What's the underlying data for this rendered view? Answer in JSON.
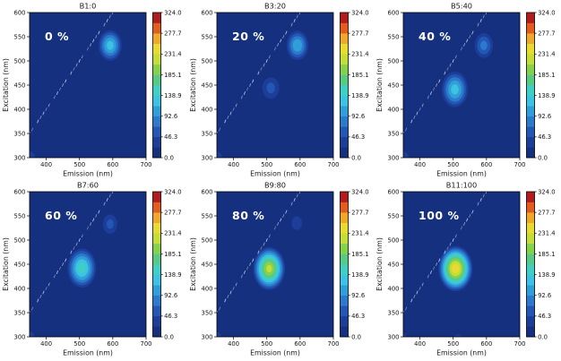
{
  "page": {
    "background": "#ffffff"
  },
  "style": {
    "plot_background": "#15307f",
    "palette": [
      "#15307f",
      "#1c3e99",
      "#2257b5",
      "#2b7acb",
      "#2f9ed9",
      "#3cc2e2",
      "#40cfc4",
      "#57ca85",
      "#86d14c",
      "#c4dd38",
      "#e9da32",
      "#f0a82b",
      "#e35c1e",
      "#b21b1e"
    ],
    "scatter_line_color": "#ced8f0",
    "overlay_text_color": "#ffffff",
    "axis_text_color": "#161616",
    "spine_color": "#000000"
  },
  "chart_data": [
    {
      "type": "heatmap",
      "title": "B1:0",
      "overlay_label": "0 %",
      "xlabel": "Emission (nm)",
      "ylabel": "Excitation (nm)",
      "xlim": [
        350,
        700
      ],
      "ylim": [
        300,
        600
      ],
      "xticks": [
        400,
        500,
        600,
        700
      ],
      "yticks": [
        300,
        350,
        400,
        450,
        500,
        550,
        600
      ],
      "colorbar_ticks": [
        "0.0",
        "46.3",
        "92.6",
        "138.9",
        "185.1",
        "231.4",
        "277.7",
        "324.0"
      ],
      "colorbar_range": [
        0,
        324
      ],
      "contour_levels": 14,
      "rayleigh_line": {
        "from": [
          350,
          350
        ],
        "to": [
          600,
          600
        ]
      },
      "peaks": [
        {
          "emission": 592,
          "excitation": 532,
          "intensity": 125,
          "rx": 40,
          "ry": 36
        },
        {
          "emission": 348,
          "excitation": 300,
          "intensity": 40,
          "rx": 28,
          "ry": 20
        }
      ]
    },
    {
      "type": "heatmap",
      "title": "B3:20",
      "overlay_label": "20 %",
      "xlabel": "Emission (nm)",
      "ylabel": "Excitation (nm)",
      "xlim": [
        350,
        700
      ],
      "ylim": [
        300,
        600
      ],
      "xticks": [
        400,
        500,
        600,
        700
      ],
      "yticks": [
        300,
        350,
        400,
        450,
        500,
        550,
        600
      ],
      "colorbar_ticks": [
        "0.0",
        "46.3",
        "92.6",
        "138.9",
        "185.1",
        "231.4",
        "277.7",
        "324.0"
      ],
      "colorbar_range": [
        0,
        324
      ],
      "contour_levels": 14,
      "rayleigh_line": {
        "from": [
          350,
          350
        ],
        "to": [
          600,
          600
        ]
      },
      "peaks": [
        {
          "emission": 592,
          "excitation": 532,
          "intensity": 112,
          "rx": 38,
          "ry": 35
        },
        {
          "emission": 512,
          "excitation": 444,
          "intensity": 50,
          "rx": 36,
          "ry": 31
        },
        {
          "emission": 348,
          "excitation": 300,
          "intensity": 40,
          "rx": 28,
          "ry": 20
        }
      ]
    },
    {
      "type": "heatmap",
      "title": "B5:40",
      "overlay_label": "40 %",
      "xlabel": "Emission (nm)",
      "ylabel": "Excitation (nm)",
      "xlim": [
        350,
        700
      ],
      "ylim": [
        300,
        600
      ],
      "xticks": [
        400,
        500,
        600,
        700
      ],
      "yticks": [
        300,
        350,
        400,
        450,
        500,
        550,
        600
      ],
      "colorbar_ticks": [
        "0.0",
        "46.3",
        "92.6",
        "138.9",
        "185.1",
        "231.4",
        "277.7",
        "324.0"
      ],
      "colorbar_range": [
        0,
        324
      ],
      "contour_levels": 14,
      "rayleigh_line": {
        "from": [
          350,
          350
        ],
        "to": [
          600,
          600
        ]
      },
      "peaks": [
        {
          "emission": 505,
          "excitation": 441,
          "intensity": 125,
          "rx": 45,
          "ry": 42
        },
        {
          "emission": 592,
          "excitation": 532,
          "intensity": 75,
          "rx": 34,
          "ry": 32
        },
        {
          "emission": 348,
          "excitation": 300,
          "intensity": 40,
          "rx": 28,
          "ry": 20
        }
      ]
    },
    {
      "type": "heatmap",
      "title": "B7:60",
      "overlay_label": "60 %",
      "xlabel": "Emission (nm)",
      "ylabel": "Excitation (nm)",
      "xlim": [
        350,
        700
      ],
      "ylim": [
        300,
        600
      ],
      "xticks": [
        400,
        500,
        600,
        700
      ],
      "yticks": [
        300,
        350,
        400,
        450,
        500,
        550,
        600
      ],
      "colorbar_ticks": [
        "0.0",
        "46.3",
        "92.6",
        "138.9",
        "185.1",
        "231.4",
        "277.7",
        "324.0"
      ],
      "colorbar_range": [
        0,
        324
      ],
      "contour_levels": 14,
      "rayleigh_line": {
        "from": [
          350,
          350
        ],
        "to": [
          600,
          600
        ]
      },
      "peaks": [
        {
          "emission": 507,
          "excitation": 442,
          "intensity": 150,
          "rx": 48,
          "ry": 45
        },
        {
          "emission": 592,
          "excitation": 533,
          "intensity": 50,
          "rx": 30,
          "ry": 28
        },
        {
          "emission": 348,
          "excitation": 300,
          "intensity": 38,
          "rx": 26,
          "ry": 18
        }
      ]
    },
    {
      "type": "heatmap",
      "title": "B9:80",
      "overlay_label": "80 %",
      "xlabel": "Emission (nm)",
      "ylabel": "Excitation (nm)",
      "xlim": [
        350,
        700
      ],
      "ylim": [
        300,
        600
      ],
      "xticks": [
        400,
        500,
        600,
        700
      ],
      "yticks": [
        300,
        350,
        400,
        450,
        500,
        550,
        600
      ],
      "colorbar_ticks": [
        "0.0",
        "46.3",
        "92.6",
        "138.9",
        "185.1",
        "231.4",
        "277.7",
        "324.0"
      ],
      "colorbar_range": [
        0,
        324
      ],
      "contour_levels": 14,
      "rayleigh_line": {
        "from": [
          350,
          350
        ],
        "to": [
          600,
          600
        ]
      },
      "peaks": [
        {
          "emission": 507,
          "excitation": 441,
          "intensity": 215,
          "rx": 52,
          "ry": 48
        },
        {
          "emission": 590,
          "excitation": 535,
          "intensity": 40,
          "rx": 24,
          "ry": 22
        },
        {
          "emission": 350,
          "excitation": 300,
          "intensity": 35,
          "rx": 22,
          "ry": 16
        }
      ]
    },
    {
      "type": "heatmap",
      "title": "B11:100",
      "overlay_label": "100 %",
      "xlabel": "Emission (nm)",
      "ylabel": "Excitation (nm)",
      "xlim": [
        350,
        700
      ],
      "ylim": [
        300,
        600
      ],
      "xticks": [
        400,
        500,
        600,
        700
      ],
      "yticks": [
        300,
        350,
        400,
        450,
        500,
        550,
        600
      ],
      "colorbar_ticks": [
        "0.0",
        "46.3",
        "92.6",
        "138.9",
        "185.1",
        "231.4",
        "277.7",
        "324.0"
      ],
      "colorbar_range": [
        0,
        324
      ],
      "contour_levels": 14,
      "rayleigh_line": {
        "from": [
          350,
          350
        ],
        "to": [
          600,
          600
        ]
      },
      "peaks": [
        {
          "emission": 507,
          "excitation": 441,
          "intensity": 248,
          "rx": 55,
          "ry": 50
        },
        {
          "emission": 515,
          "excitation": 296,
          "intensity": 40,
          "rx": 24,
          "ry": 14
        },
        {
          "emission": 348,
          "excitation": 300,
          "intensity": 32,
          "rx": 20,
          "ry": 14
        }
      ]
    }
  ]
}
